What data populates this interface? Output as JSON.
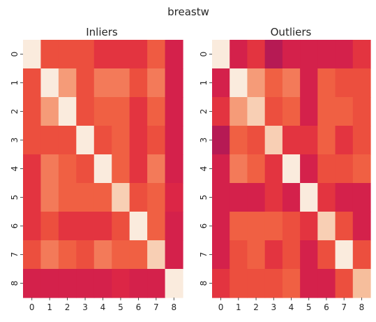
{
  "suptitle": "breastw",
  "chart_data": [
    {
      "type": "heatmap",
      "title": "Inliers",
      "x_ticks": [
        "0",
        "1",
        "2",
        "3",
        "4",
        "5",
        "6",
        "7",
        "8"
      ],
      "y_ticks": [
        "0",
        "1",
        "2",
        "3",
        "4",
        "5",
        "6",
        "7",
        "8"
      ],
      "value_range": [
        0,
        1
      ],
      "colormap": "rocket",
      "values": [
        [
          1.0,
          0.65,
          0.65,
          0.65,
          0.55,
          0.55,
          0.55,
          0.7,
          0.45
        ],
        [
          0.65,
          1.0,
          0.85,
          0.65,
          0.78,
          0.78,
          0.65,
          0.78,
          0.45
        ],
        [
          0.65,
          0.85,
          1.0,
          0.65,
          0.72,
          0.72,
          0.55,
          0.72,
          0.45
        ],
        [
          0.65,
          0.65,
          0.65,
          1.0,
          0.65,
          0.72,
          0.55,
          0.65,
          0.45
        ],
        [
          0.55,
          0.78,
          0.72,
          0.65,
          1.0,
          0.72,
          0.55,
          0.78,
          0.45
        ],
        [
          0.55,
          0.78,
          0.72,
          0.72,
          0.72,
          0.95,
          0.65,
          0.72,
          0.5
        ],
        [
          0.55,
          0.65,
          0.55,
          0.55,
          0.55,
          0.65,
          1.0,
          0.72,
          0.45
        ],
        [
          0.65,
          0.78,
          0.72,
          0.65,
          0.78,
          0.72,
          0.72,
          0.95,
          0.45
        ],
        [
          0.45,
          0.45,
          0.45,
          0.45,
          0.45,
          0.5,
          0.45,
          0.45,
          1.0
        ]
      ]
    },
    {
      "type": "heatmap",
      "title": "Outliers",
      "x_ticks": [
        "0",
        "1",
        "2",
        "3",
        "4",
        "5",
        "6",
        "7",
        "8"
      ],
      "y_ticks": [
        "0",
        "1",
        "2",
        "3",
        "4",
        "5",
        "6",
        "7",
        "8"
      ],
      "value_range": [
        0,
        1
      ],
      "colormap": "rocket",
      "values": [
        [
          1.0,
          0.45,
          0.55,
          0.35,
          0.45,
          0.45,
          0.45,
          0.45,
          0.55
        ],
        [
          0.45,
          1.0,
          0.85,
          0.72,
          0.78,
          0.45,
          0.72,
          0.65,
          0.65
        ],
        [
          0.55,
          0.85,
          0.95,
          0.65,
          0.72,
          0.45,
          0.72,
          0.72,
          0.65
        ],
        [
          0.35,
          0.72,
          0.65,
          0.95,
          0.55,
          0.55,
          0.72,
          0.55,
          0.65
        ],
        [
          0.45,
          0.78,
          0.72,
          0.55,
          1.0,
          0.45,
          0.65,
          0.65,
          0.72
        ],
        [
          0.45,
          0.45,
          0.45,
          0.55,
          0.45,
          1.0,
          0.55,
          0.45,
          0.45
        ],
        [
          0.45,
          0.72,
          0.72,
          0.72,
          0.65,
          0.55,
          0.95,
          0.65,
          0.45
        ],
        [
          0.45,
          0.65,
          0.72,
          0.55,
          0.65,
          0.45,
          0.65,
          1.0,
          0.65
        ],
        [
          0.55,
          0.65,
          0.65,
          0.65,
          0.72,
          0.45,
          0.45,
          0.65,
          0.92
        ]
      ]
    }
  ]
}
